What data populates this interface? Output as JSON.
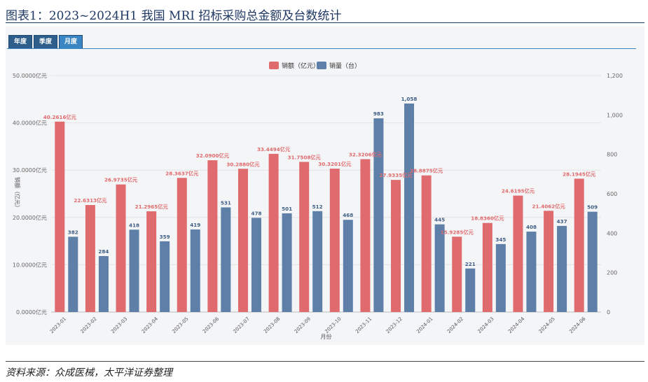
{
  "figure": {
    "title": "图表1：2023~2024H1 我国 MRI 招标采购总金额及台数统计",
    "source": "资料来源：众成医械，太平洋证券整理"
  },
  "tabs": [
    {
      "label": "年度",
      "active": false
    },
    {
      "label": "季度",
      "active": false
    },
    {
      "label": "月度",
      "active": true
    }
  ],
  "colors": {
    "amount": "#e06b6e",
    "units": "#5d7fa8",
    "grid": "#e4e4e4"
  },
  "chart_data": {
    "type": "bar",
    "title": "",
    "xlabel": "月份",
    "ylabel": "销额（亿元）",
    "legend_position": "top-center",
    "grid": true,
    "categories": [
      "2023-01",
      "2023-02",
      "2023-03",
      "2023-04",
      "2023-05",
      "2023-06",
      "2023-07",
      "2023-08",
      "2023-09",
      "2023-10",
      "2023-11",
      "2023-12",
      "2024-01",
      "2024-02",
      "2024-03",
      "2024-04",
      "2024-05",
      "2024-06"
    ],
    "ylim": [
      0,
      50
    ],
    "y2lim": [
      0,
      1200
    ],
    "y_ticks": [
      "0.0000亿元",
      "10.0000亿元",
      "20.0000亿元",
      "30.0000亿元",
      "40.0000亿元",
      "50.0000亿元"
    ],
    "y2_ticks": [
      "0",
      "200",
      "400",
      "600",
      "800",
      "1,000",
      "1,200"
    ],
    "series": [
      {
        "name": "销额（亿元）",
        "axis": "left",
        "values": [
          40.2616,
          22.6313,
          26.9735,
          21.2965,
          28.3637,
          32.09,
          30.288,
          33.4494,
          31.7508,
          30.3201,
          32.3206,
          27.9335,
          28.8875,
          15.9285,
          18.836,
          24.6195,
          21.4062,
          28.1945
        ],
        "labels": [
          "40.2616亿元",
          "22.6313亿元",
          "26.9735亿元",
          "21.2965亿元",
          "28.3637亿元",
          "32.0900亿元",
          "30.2880亿元",
          "33.4494亿元",
          "31.7508亿元",
          "30.3201亿元",
          "32.3206亿元",
          "27.9335亿元",
          "28.8875亿元",
          "15.9285亿元",
          "18.8360亿元",
          "24.6195亿元",
          "21.4062亿元",
          "28.1945亿元"
        ]
      },
      {
        "name": "销量（台）",
        "axis": "right",
        "values": [
          382,
          284,
          418,
          359,
          419,
          531,
          478,
          501,
          512,
          468,
          983,
          1058,
          445,
          221,
          345,
          408,
          437,
          509
        ],
        "labels": [
          "382",
          "284",
          "418",
          "359",
          "419",
          "531",
          "478",
          "501",
          "512",
          "468",
          "983",
          "1,058",
          "445",
          "221",
          "345",
          "408",
          "437",
          "509"
        ]
      }
    ]
  }
}
